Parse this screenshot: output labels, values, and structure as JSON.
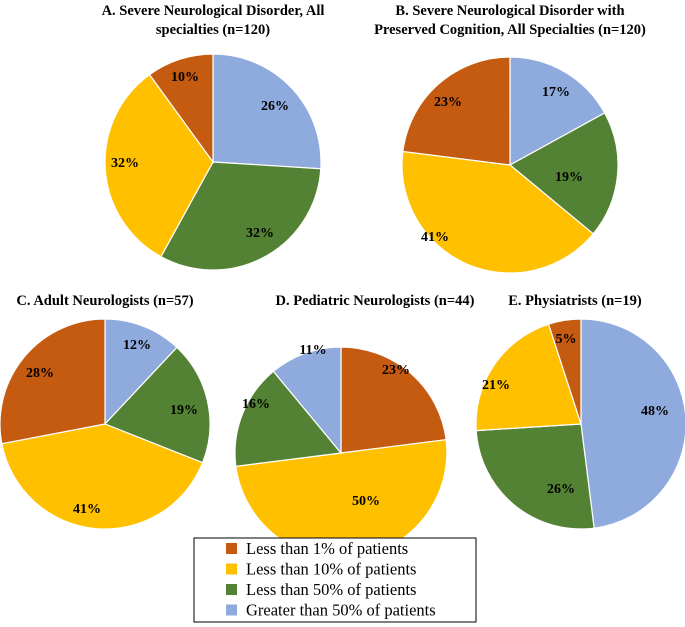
{
  "colors": {
    "Less than 1% of patients": "#c55a11",
    "Less than 10% of patients": "#ffc000",
    "Less than 50% of patients": "#548235",
    "Greater than 50% of patients": "#8faadc"
  },
  "legend": [
    "Less than 1% of patients",
    "Less than 10% of patients",
    "Less than 50% of patients",
    "Greater than 50% of patients"
  ],
  "chart_data": [
    {
      "type": "pie",
      "title": "A. Severe Neurological Disorder, All specialties (n=120)",
      "title_lines": [
        "A. Severe Neurological Disorder, All",
        "specialties (n=120)"
      ],
      "categories": [
        "Greater than 50% of patients",
        "Less than 50% of patients",
        "Less than 10% of patients",
        "Less than 1% of patients"
      ],
      "values": [
        26,
        32,
        32,
        10
      ],
      "labels": [
        "26%",
        "32%",
        "32%",
        "10%"
      ]
    },
    {
      "type": "pie",
      "title": "B. Severe Neurological Disorder with Preserved Cognition, All Specialties (n=120)",
      "title_lines": [
        "B. Severe Neurological Disorder with",
        "Preserved Cognition, All Specialties (n=120)"
      ],
      "categories": [
        "Greater than 50% of patients",
        "Less than 50% of patients",
        "Less than 10% of patients",
        "Less than 1% of patients"
      ],
      "values": [
        17,
        19,
        41,
        23
      ],
      "labels": [
        "17%",
        "19%",
        "41%",
        "23%"
      ]
    },
    {
      "type": "pie",
      "title": "C. Adult Neurologists (n=57)",
      "title_lines": [
        "C. Adult Neurologists (n=57)"
      ],
      "categories": [
        "Greater than 50% of patients",
        "Less than 50% of patients",
        "Less than 10% of patients",
        "Less than 1% of patients"
      ],
      "values": [
        12,
        19,
        41,
        28
      ],
      "labels": [
        "12%",
        "19%",
        "41%",
        "28%"
      ]
    },
    {
      "type": "pie",
      "title": "D. Pediatric Neurologists (n=44)",
      "title_lines": [
        "D. Pediatric Neurologists (n=44)"
      ],
      "categories": [
        "Less than 1% of patients",
        "Less than 10% of patients",
        "Less than 50% of patients",
        "Greater than 50% of patients"
      ],
      "values": [
        23,
        50,
        16,
        11
      ],
      "labels": [
        "23%",
        "50%",
        "16%",
        "11%"
      ]
    },
    {
      "type": "pie",
      "title": "E. Physiatrists (n=19)",
      "title_lines": [
        "E. Physiatrists (n=19)"
      ],
      "categories": [
        "Greater than 50% of patients",
        "Less than 50% of patients",
        "Less than 10% of patients",
        "Less than 1% of patients"
      ],
      "values": [
        48,
        26,
        21,
        5
      ],
      "labels": [
        "48%",
        "26%",
        "21%",
        "5%"
      ]
    }
  ]
}
